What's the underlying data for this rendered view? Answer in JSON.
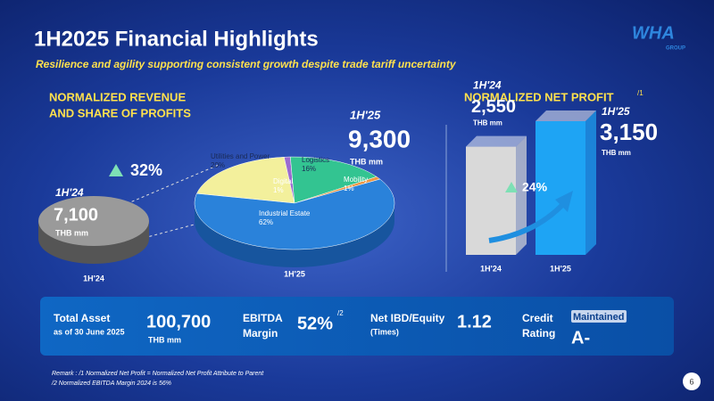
{
  "header": {
    "title": "1H2025 Financial Highlights",
    "subtitle": "Resilience and agility supporting consistent growth despite trade tariff uncertainty",
    "logo": "WHA",
    "logo_sub": "GROUP"
  },
  "revenue": {
    "title": [
      "NORMALIZED REVENUE",
      "AND SHARE OF PROFITS"
    ],
    "growth": "32%",
    "periods": [
      {
        "period": "1H'24",
        "value": "7,100",
        "unit": "THB mm"
      },
      {
        "period": "1H'25",
        "value": "9,300",
        "unit": "THB mm"
      }
    ]
  },
  "chart_data": [
    {
      "type": "pie",
      "categories": [
        "Utilities and Power",
        "Digital",
        "Logistics",
        "Mobility",
        "Industrial Estate"
      ],
      "values": [
        20,
        1,
        16,
        1,
        62
      ],
      "value_labels": [
        "20%",
        "1%",
        "16%",
        "1%",
        "62%"
      ],
      "colors": [
        "#f3f09c",
        "#9a6ad0",
        "#33c491",
        "#ee9640",
        "#2a82da"
      ],
      "footer": "1H'25"
    },
    {
      "type": "bar",
      "title": "NORMALIZED NET PROFIT",
      "title_note": "/1",
      "categories": [
        "1H'24",
        "1H'25"
      ],
      "values": [
        2550,
        3150
      ],
      "value_labels": [
        "2,550",
        "3,150"
      ],
      "unit": "THB mm",
      "growth": "24%",
      "colors": [
        "#d9d9d9",
        "#1ea4f4"
      ]
    }
  ],
  "summary": {
    "total_asset": {
      "label": "Total Asset",
      "sublabel": "as of 30 June 2025",
      "value": "100,700",
      "unit": "THB mm"
    },
    "ebitda": {
      "label": [
        "EBITDA",
        "Margin"
      ],
      "value": "52%",
      "note": "/2"
    },
    "ibd": {
      "label": "Net IBD/Equity",
      "sublabel": "(Times)",
      "value": "1.12"
    },
    "rating": {
      "label": [
        "Credit",
        "Rating"
      ],
      "status": "Maintained",
      "value": "A-"
    }
  },
  "remarks": [
    "Remark : /1 Normalized Net Profit = Normalized Net Profit Attribute to Parent",
    "/2 Normalized EBITDA Margin 2024 is 56%"
  ],
  "page": "6"
}
